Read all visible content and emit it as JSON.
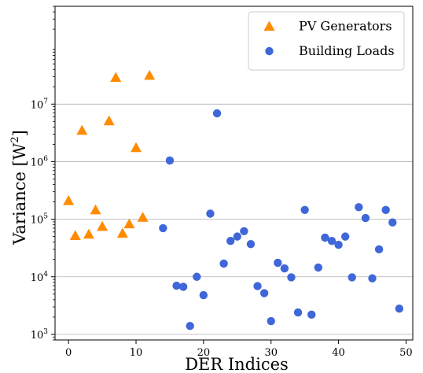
{
  "chart_data": {
    "type": "scatter",
    "title": "",
    "xlabel": "DER Indices",
    "ylabel_text": "Variance [W",
    "ylabel_sup": "2",
    "ylabel_close": "]",
    "xlim": [
      -2,
      51
    ],
    "ylim": [
      800,
      500000000
    ],
    "yscale": "log",
    "grid": "horizontal",
    "legend_position": "top-right",
    "x_ticks": [
      {
        "value": 0,
        "label": "0"
      },
      {
        "value": 10,
        "label": "10"
      },
      {
        "value": 20,
        "label": "20"
      },
      {
        "value": 30,
        "label": "30"
      },
      {
        "value": 40,
        "label": "40"
      },
      {
        "value": 50,
        "label": "50"
      }
    ],
    "y_ticks": [
      {
        "value": 1000,
        "base": "10",
        "exp": "3"
      },
      {
        "value": 10000,
        "base": "10",
        "exp": "4"
      },
      {
        "value": 100000,
        "base": "10",
        "exp": "5"
      },
      {
        "value": 1000000,
        "base": "10",
        "exp": "6"
      },
      {
        "value": 10000000,
        "base": "10",
        "exp": "7"
      }
    ],
    "series": [
      {
        "name": "PV Generators",
        "marker": "triangle",
        "color": "#ff8c00",
        "points": [
          [
            0,
            210000
          ],
          [
            1,
            52000
          ],
          [
            2,
            3500000
          ],
          [
            3,
            55000
          ],
          [
            4,
            145000
          ],
          [
            5,
            75000
          ],
          [
            6,
            5100000
          ],
          [
            7,
            29000000
          ],
          [
            8,
            57000
          ],
          [
            9,
            83000
          ],
          [
            10,
            1750000
          ],
          [
            11,
            108000
          ],
          [
            12,
            31500000
          ]
        ]
      },
      {
        "name": "Building Loads",
        "marker": "circle",
        "color": "#3f67d9",
        "points": [
          [
            14,
            70000
          ],
          [
            15,
            1050000
          ],
          [
            16,
            7000
          ],
          [
            17,
            6700
          ],
          [
            18,
            1400
          ],
          [
            19,
            10000
          ],
          [
            20,
            4800
          ],
          [
            21,
            125000
          ],
          [
            22,
            6900000
          ],
          [
            23,
            17000
          ],
          [
            24,
            42000
          ],
          [
            25,
            50000
          ],
          [
            26,
            62000
          ],
          [
            27,
            37000
          ],
          [
            28,
            6900
          ],
          [
            29,
            5200
          ],
          [
            30,
            1700
          ],
          [
            31,
            17500
          ],
          [
            32,
            14000
          ],
          [
            33,
            9800
          ],
          [
            34,
            2400
          ],
          [
            35,
            145000
          ],
          [
            36,
            2200
          ],
          [
            37,
            14500
          ],
          [
            38,
            48000
          ],
          [
            39,
            42000
          ],
          [
            40,
            36000
          ],
          [
            41,
            50000
          ],
          [
            42,
            9800
          ],
          [
            43,
            162000
          ],
          [
            44,
            105000
          ],
          [
            45,
            9400
          ],
          [
            46,
            30000
          ],
          [
            47,
            145000
          ],
          [
            48,
            88000
          ],
          [
            49,
            2800
          ]
        ]
      }
    ]
  }
}
